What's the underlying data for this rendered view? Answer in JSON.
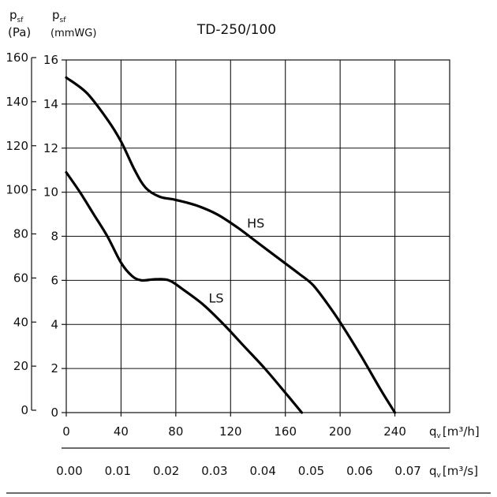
{
  "chart_data": {
    "type": "line",
    "title": "TD-250/100",
    "axes": {
      "y_left": {
        "symbol": "p",
        "subscript": "sf",
        "unit": "(Pa)",
        "ticks": [
          0,
          20,
          40,
          60,
          80,
          100,
          120,
          140,
          160
        ],
        "range": [
          0,
          160
        ]
      },
      "y_inner": {
        "symbol": "p",
        "subscript": "sf",
        "unit": "(mmWG)",
        "ticks": [
          0,
          2,
          4,
          6,
          8,
          10,
          12,
          14,
          16
        ],
        "range": [
          0,
          16
        ]
      },
      "x_primary": {
        "label": "q",
        "subscript": "v",
        "unit": "[m³/h]",
        "ticks": [
          0,
          40,
          80,
          120,
          160,
          200,
          240
        ],
        "range": [
          0,
          280
        ]
      },
      "x_secondary": {
        "label": "q",
        "subscript": "v",
        "unit": "[m³/s]",
        "ticks": [
          "0.00",
          "0.01",
          "0.02",
          "0.03",
          "0.04",
          "0.05",
          "0.06",
          "0.07"
        ]
      }
    },
    "grid": true,
    "series": [
      {
        "name": "HS",
        "x": [
          0,
          15,
          30,
          40,
          50,
          58,
          68,
          80,
          95,
          110,
          125,
          140,
          155,
          170,
          180,
          190,
          200,
          215,
          230,
          240
        ],
        "y": [
          15.2,
          14.5,
          13.3,
          12.3,
          11.0,
          10.2,
          9.8,
          9.65,
          9.4,
          9.0,
          8.4,
          7.7,
          7.0,
          6.3,
          5.8,
          5.0,
          4.1,
          2.6,
          1.0,
          0
        ]
      },
      {
        "name": "LS",
        "x": [
          0,
          10,
          20,
          30,
          40,
          48,
          55,
          65,
          75,
          85,
          100,
          115,
          130,
          145,
          160,
          172
        ],
        "y": [
          10.9,
          10.0,
          9.0,
          8.0,
          6.8,
          6.2,
          6.0,
          6.05,
          6.0,
          5.6,
          4.9,
          4.0,
          3.0,
          2.0,
          0.9,
          0
        ]
      }
    ]
  }
}
